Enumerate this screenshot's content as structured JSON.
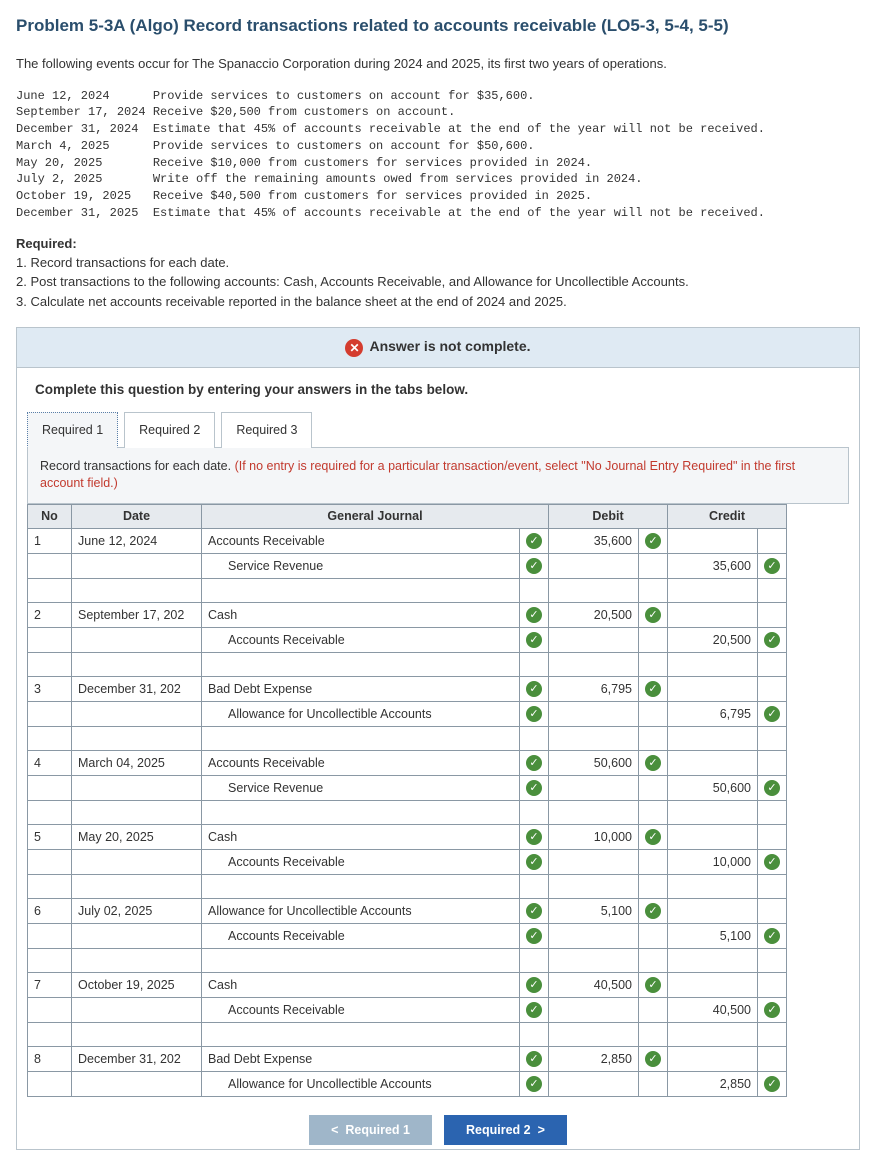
{
  "title": "Problem 5-3A (Algo) Record transactions related to accounts receivable (LO5-3, 5-4, 5-5)",
  "intro": "The following events occur for The Spanaccio Corporation during 2024 and 2025, its first two years of operations.",
  "events_text": "June 12, 2024      Provide services to customers on account for $35,600.\nSeptember 17, 2024 Receive $20,500 from customers on account.\nDecember 31, 2024  Estimate that 45% of accounts receivable at the end of the year will not be received.\nMarch 4, 2025      Provide services to customers on account for $50,600.\nMay 20, 2025       Receive $10,000 from customers for services provided in 2024.\nJuly 2, 2025       Write off the remaining amounts owed from services provided in 2024.\nOctober 19, 2025   Receive $40,500 from customers for services provided in 2025.\nDecember 31, 2025  Estimate that 45% of accounts receivable at the end of the year will not be received.",
  "required_heading": "Required:",
  "required": {
    "r1": "1. Record transactions for each date.",
    "r2": "2. Post transactions to the following accounts: Cash, Accounts Receivable, and Allowance for Uncollectible Accounts.",
    "r3": "3. Calculate net accounts receivable reported in the balance sheet at the end of 2024 and 2025."
  },
  "status": "Answer is not complete.",
  "instruction_line": "Complete this question by entering your answers in the tabs below.",
  "tabs": {
    "t1": "Required 1",
    "t2": "Required 2",
    "t3": "Required 3"
  },
  "tab_note_black": "Record transactions for each date. ",
  "tab_note_red": "(If no entry is required for a particular transaction/event, select \"No Journal Entry Required\" in the first account field.)",
  "table": {
    "headers": {
      "no": "No",
      "date": "Date",
      "gj": "General Journal",
      "debit": "Debit",
      "credit": "Credit"
    },
    "entries": [
      {
        "no": "1",
        "date": "June 12, 2024",
        "lines": [
          {
            "account": "Accounts Receivable",
            "indent": false,
            "debit": "35,600",
            "credit": ""
          },
          {
            "account": "Service Revenue",
            "indent": true,
            "debit": "",
            "credit": "35,600"
          }
        ]
      },
      {
        "no": "2",
        "date": "September 17, 202",
        "lines": [
          {
            "account": "Cash",
            "indent": false,
            "debit": "20,500",
            "credit": ""
          },
          {
            "account": "Accounts Receivable",
            "indent": true,
            "debit": "",
            "credit": "20,500"
          }
        ]
      },
      {
        "no": "3",
        "date": "December 31, 202",
        "lines": [
          {
            "account": "Bad Debt Expense",
            "indent": false,
            "debit": "6,795",
            "credit": ""
          },
          {
            "account": "Allowance for Uncollectible Accounts",
            "indent": true,
            "debit": "",
            "credit": "6,795"
          }
        ]
      },
      {
        "no": "4",
        "date": "March 04, 2025",
        "lines": [
          {
            "account": "Accounts Receivable",
            "indent": false,
            "debit": "50,600",
            "credit": ""
          },
          {
            "account": "Service Revenue",
            "indent": true,
            "debit": "",
            "credit": "50,600"
          }
        ]
      },
      {
        "no": "5",
        "date": "May 20, 2025",
        "lines": [
          {
            "account": "Cash",
            "indent": false,
            "debit": "10,000",
            "credit": ""
          },
          {
            "account": "Accounts Receivable",
            "indent": true,
            "debit": "",
            "credit": "10,000"
          }
        ]
      },
      {
        "no": "6",
        "date": "July 02, 2025",
        "lines": [
          {
            "account": "Allowance for Uncollectible Accounts",
            "indent": false,
            "debit": "5,100",
            "credit": ""
          },
          {
            "account": "Accounts Receivable",
            "indent": true,
            "debit": "",
            "credit": "5,100"
          }
        ]
      },
      {
        "no": "7",
        "date": "October 19, 2025",
        "lines": [
          {
            "account": "Cash",
            "indent": false,
            "debit": "40,500",
            "credit": ""
          },
          {
            "account": "Accounts Receivable",
            "indent": true,
            "debit": "",
            "credit": "40,500"
          }
        ]
      },
      {
        "no": "8",
        "date": "December 31, 202",
        "lines": [
          {
            "account": "Bad Debt Expense",
            "indent": false,
            "debit": "2,850",
            "credit": ""
          },
          {
            "account": "Allowance for Uncollectible Accounts",
            "indent": true,
            "debit": "",
            "credit": "2,850"
          }
        ]
      }
    ]
  },
  "nav": {
    "prev": "Required 1",
    "next": "Required 2"
  },
  "colors": {
    "heading": "#2a4e6c",
    "box_border": "#b9c4cc",
    "status_bg": "#dfeaf3",
    "error_red": "#d43c2e",
    "note_red": "#c23a2e",
    "check_green": "#4a8f3c",
    "prev_btn": "#9fb6c9",
    "next_btn": "#2b64b0",
    "cell_border": "#8a98a4",
    "th_bg": "#e6eaee",
    "tab_note_bg": "#f4f6f8"
  }
}
